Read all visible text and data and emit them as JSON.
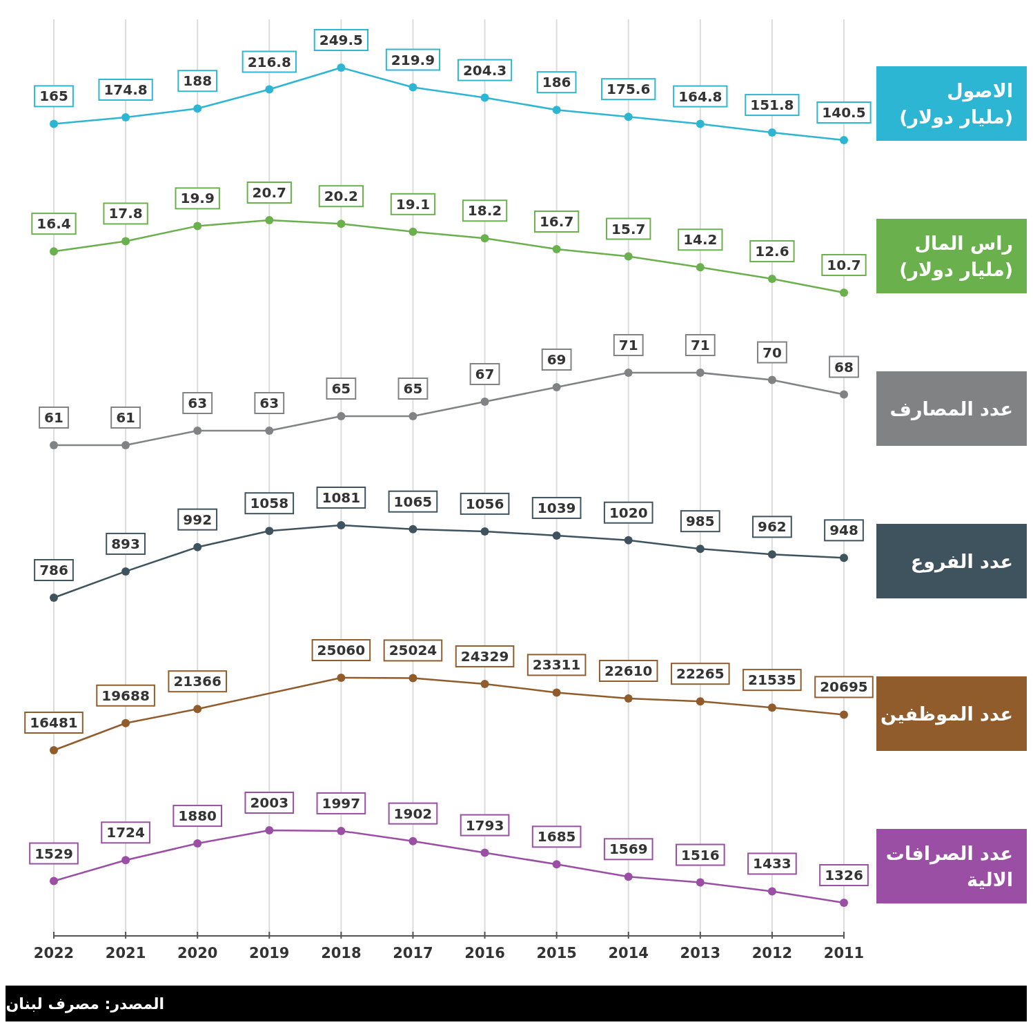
{
  "chart_data": [
    {
      "type": "line",
      "categories": [
        "2022",
        "2021",
        "2020",
        "2019",
        "2018",
        "2017",
        "2016",
        "2015",
        "2014",
        "2013",
        "2012",
        "2011"
      ],
      "series": [
        {
          "name": "الاصول (مليار دولار)",
          "color": "#2db6d4",
          "values": [
            165,
            174.8,
            188,
            216.8,
            249.5,
            219.9,
            204.3,
            186,
            175.6,
            164.8,
            151.8,
            140.5
          ]
        }
      ],
      "data_labels": true,
      "marker": "circle",
      "grid": "x",
      "legend": "right",
      "tick_labels": false
    },
    {
      "type": "line",
      "categories": [
        "2022",
        "2021",
        "2020",
        "2019",
        "2018",
        "2017",
        "2016",
        "2015",
        "2014",
        "2013",
        "2012",
        "2011"
      ],
      "series": [
        {
          "name": "راس المال (مليار دولار)",
          "color": "#6ab04c",
          "values": [
            16.4,
            17.8,
            19.9,
            20.7,
            20.2,
            19.1,
            18.2,
            16.7,
            15.7,
            14.2,
            12.6,
            10.7
          ]
        }
      ],
      "data_labels": true,
      "marker": "circle",
      "grid": "x",
      "legend": "right",
      "tick_labels": false
    },
    {
      "type": "line",
      "categories": [
        "2022",
        "2021",
        "2020",
        "2019",
        "2018",
        "2017",
        "2016",
        "2015",
        "2014",
        "2013",
        "2012",
        "2011"
      ],
      "series": [
        {
          "name": "عدد المصارف",
          "color": "#808284",
          "values": [
            61,
            61,
            63,
            63,
            65,
            65,
            67,
            69,
            71,
            71,
            70,
            68
          ]
        }
      ],
      "data_labels": true,
      "marker": "circle",
      "grid": "x",
      "legend": "right",
      "tick_labels": false
    },
    {
      "type": "line",
      "categories": [
        "2022",
        "2021",
        "2020",
        "2019",
        "2018",
        "2017",
        "2016",
        "2015",
        "2014",
        "2013",
        "2012",
        "2011"
      ],
      "series": [
        {
          "name": "عدد الفروع",
          "color": "#3e535e",
          "values": [
            786,
            893,
            992,
            1058,
            1081,
            1065,
            1056,
            1039,
            1020,
            985,
            962,
            948
          ]
        }
      ],
      "data_labels": true,
      "marker": "circle",
      "grid": "x",
      "legend": "right",
      "tick_labels": false
    },
    {
      "type": "line",
      "categories": [
        "2022",
        "2021",
        "2020",
        "2019",
        "2018",
        "2017",
        "2016",
        "2015",
        "2014",
        "2013",
        "2012",
        "2011"
      ],
      "series": [
        {
          "name": "عدد الموظفين",
          "color": "#915c2c",
          "values": [
            16481,
            19688,
            21366,
            null,
            25060,
            25024,
            24329,
            23311,
            22610,
            22265,
            21535,
            20695
          ]
        }
      ],
      "data_labels": true,
      "marker": "circle",
      "grid": "x",
      "legend": "right",
      "tick_labels": false
    },
    {
      "type": "line",
      "categories": [
        "2022",
        "2021",
        "2020",
        "2019",
        "2018",
        "2017",
        "2016",
        "2015",
        "2014",
        "2013",
        "2012",
        "2011"
      ],
      "series": [
        {
          "name": "عدد الصرافات الالية",
          "color": "#9a4ea4",
          "values": [
            1529,
            1724,
            1880,
            2003,
            1997,
            1902,
            1793,
            1685,
            1569,
            1516,
            1433,
            1326
          ]
        }
      ],
      "data_labels": true,
      "marker": "circle",
      "grid": "x",
      "legend": "right",
      "tick_labels": "x",
      "annotations": [
        "المصدر: مصرف لبنان"
      ]
    }
  ]
}
